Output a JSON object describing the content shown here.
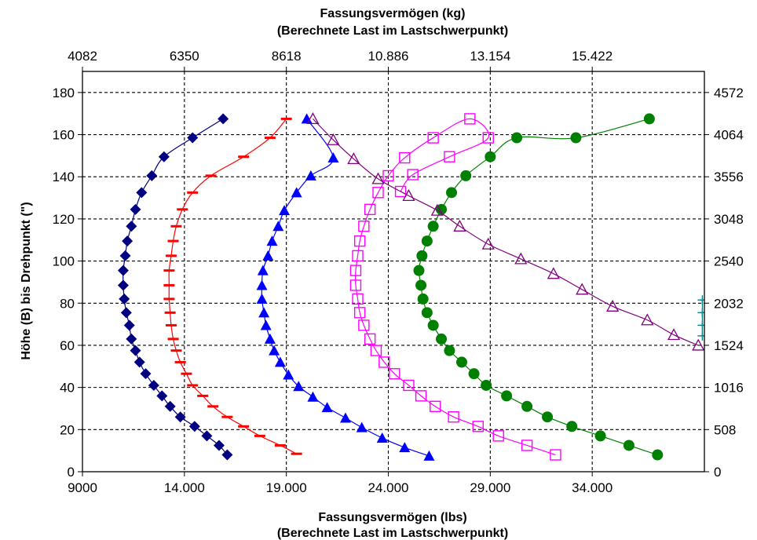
{
  "chart_data": {
    "type": "scatter",
    "title_top_line1": "Fassungsvermögen (kg)",
    "title_top_line2": "(Berechnete Last im Lastschwerpunkt)",
    "xlabel_line1": "Fassungsvermögen (lbs)",
    "xlabel_line2": "(Berechnete Last im Lastschwerpunkt)",
    "ylabel": "Höhe (B) bis Drehpunkt (\")",
    "x_range": [
      9000,
      39500
    ],
    "y_range": [
      0,
      190
    ],
    "x_ticks": [
      {
        "value": 9000,
        "label": "9000"
      },
      {
        "value": 14000,
        "label": "14.000"
      },
      {
        "value": 19000,
        "label": "19.000"
      },
      {
        "value": 24000,
        "label": "24.000"
      },
      {
        "value": 29000,
        "label": "29.000"
      },
      {
        "value": 34000,
        "label": "34.000"
      }
    ],
    "y_ticks": [
      {
        "value": 0,
        "label": "0"
      },
      {
        "value": 20,
        "label": "20"
      },
      {
        "value": 40,
        "label": "40"
      },
      {
        "value": 60,
        "label": "60"
      },
      {
        "value": 80,
        "label": "80"
      },
      {
        "value": 100,
        "label": "100"
      },
      {
        "value": 120,
        "label": "120"
      },
      {
        "value": 140,
        "label": "140"
      },
      {
        "value": 160,
        "label": "160"
      },
      {
        "value": 180,
        "label": "180"
      }
    ],
    "x2_ticks": [
      {
        "value": 9000,
        "label": "4082"
      },
      {
        "value": 14000,
        "label": "6350"
      },
      {
        "value": 19000,
        "label": "8618"
      },
      {
        "value": 24000,
        "label": "10.886"
      },
      {
        "value": 29000,
        "label": "13.154"
      },
      {
        "value": 34000,
        "label": "15.422"
      }
    ],
    "y2_ticks": [
      {
        "value": 0,
        "label": "0"
      },
      {
        "value": 20,
        "label": "508"
      },
      {
        "value": 40,
        "label": "1016"
      },
      {
        "value": 60,
        "label": "1524"
      },
      {
        "value": 80,
        "label": "2032"
      },
      {
        "value": 100,
        "label": "2540"
      },
      {
        "value": 120,
        "label": "3048"
      },
      {
        "value": 140,
        "label": "3556"
      },
      {
        "value": 160,
        "label": "4064"
      },
      {
        "value": 180,
        "label": "4572"
      }
    ],
    "grid": true,
    "series": [
      {
        "marker": "diamond",
        "color": "#000080",
        "points": [
          [
            16100,
            8
          ],
          [
            15700,
            12.5
          ],
          [
            15100,
            17
          ],
          [
            14500,
            21.5
          ],
          [
            13800,
            26
          ],
          [
            13300,
            31
          ],
          [
            12900,
            36
          ],
          [
            12500,
            41
          ],
          [
            12100,
            46.5
          ],
          [
            11800,
            52
          ],
          [
            11600,
            57.5
          ],
          [
            11400,
            63
          ],
          [
            11300,
            69.5
          ],
          [
            11150,
            75.5
          ],
          [
            11050,
            82
          ],
          [
            11000,
            88.5
          ],
          [
            11000,
            95.5
          ],
          [
            11100,
            102.5
          ],
          [
            11200,
            109.5
          ],
          [
            11400,
            116.5
          ],
          [
            11600,
            124.5
          ],
          [
            11900,
            132.5
          ],
          [
            12400,
            140.5
          ],
          [
            13000,
            149.5
          ],
          [
            14400,
            158.5
          ],
          [
            15900,
            167.5
          ]
        ]
      },
      {
        "marker": "dash",
        "color": "#ff0000",
        "points": [
          [
            19500,
            8.5
          ],
          [
            18700,
            12.5
          ],
          [
            17700,
            17
          ],
          [
            16900,
            21.5
          ],
          [
            16100,
            26
          ],
          [
            15400,
            31
          ],
          [
            14900,
            36
          ],
          [
            14400,
            41
          ],
          [
            14100,
            46.5
          ],
          [
            13800,
            52
          ],
          [
            13600,
            57.5
          ],
          [
            13450,
            63
          ],
          [
            13350,
            69.5
          ],
          [
            13300,
            75.5
          ],
          [
            13250,
            82
          ],
          [
            13250,
            88.5
          ],
          [
            13250,
            95.5
          ],
          [
            13350,
            102.5
          ],
          [
            13450,
            109.5
          ],
          [
            13600,
            116.5
          ],
          [
            13900,
            124.5
          ],
          [
            14400,
            132.5
          ],
          [
            15300,
            140.5
          ],
          [
            16900,
            149.5
          ],
          [
            18200,
            158.5
          ],
          [
            19000,
            167.5
          ]
        ]
      },
      {
        "marker": "triangle",
        "color": "#0000ff",
        "points": [
          [
            26000,
            7.5
          ],
          [
            24800,
            11.5
          ],
          [
            23700,
            16
          ],
          [
            22700,
            21
          ],
          [
            21900,
            25.5
          ],
          [
            21000,
            30.5
          ],
          [
            20300,
            35.5
          ],
          [
            19600,
            40.5
          ],
          [
            19100,
            46
          ],
          [
            18700,
            52
          ],
          [
            18400,
            57.5
          ],
          [
            18200,
            63
          ],
          [
            18000,
            69.5
          ],
          [
            17900,
            75.5
          ],
          [
            17800,
            82
          ],
          [
            17800,
            88.5
          ],
          [
            17850,
            95.5
          ],
          [
            18100,
            102.5
          ],
          [
            18300,
            109.5
          ],
          [
            18600,
            116.5
          ],
          [
            18900,
            124
          ],
          [
            19500,
            132.5
          ],
          [
            20200,
            140.5
          ],
          [
            21300,
            149
          ],
          [
            20000,
            167.5
          ]
        ]
      },
      {
        "marker": "square-open",
        "color": "#ff00ff",
        "points": [
          [
            32200,
            8
          ],
          [
            30800,
            12.5
          ],
          [
            29400,
            17
          ],
          [
            28400,
            21.5
          ],
          [
            27200,
            26
          ],
          [
            26300,
            31
          ],
          [
            25600,
            36
          ],
          [
            25000,
            41
          ],
          [
            24300,
            46.5
          ],
          [
            23800,
            52
          ],
          [
            23400,
            57.5
          ],
          [
            23100,
            63
          ],
          [
            22800,
            69.5
          ],
          [
            22600,
            75.5
          ],
          [
            22500,
            82
          ],
          [
            22400,
            88.5
          ],
          [
            22400,
            95.5
          ],
          [
            22500,
            102.5
          ],
          [
            22600,
            109.5
          ],
          [
            22800,
            116.5
          ],
          [
            23100,
            124.5
          ],
          [
            23500,
            132.5
          ],
          [
            24000,
            140.5
          ],
          [
            24800,
            149
          ],
          [
            26200,
            158.5
          ],
          [
            28000,
            167.5
          ],
          [
            28900,
            158.5
          ],
          [
            27000,
            149.5
          ],
          [
            25200,
            141
          ],
          [
            24600,
            133
          ]
        ]
      },
      {
        "marker": "circle",
        "color": "#008000",
        "points": [
          [
            37200,
            8
          ],
          [
            35800,
            12.5
          ],
          [
            34400,
            17
          ],
          [
            33000,
            21.5
          ],
          [
            31800,
            26
          ],
          [
            30800,
            31
          ],
          [
            29800,
            36
          ],
          [
            28800,
            41
          ],
          [
            28200,
            46.5
          ],
          [
            27600,
            52
          ],
          [
            27000,
            57.5
          ],
          [
            26600,
            63
          ],
          [
            26200,
            69.5
          ],
          [
            25900,
            75.5
          ],
          [
            25700,
            82
          ],
          [
            25600,
            88.5
          ],
          [
            25500,
            95.5
          ],
          [
            25650,
            102.5
          ],
          [
            25900,
            109.5
          ],
          [
            26200,
            116.5
          ],
          [
            26600,
            124.5
          ],
          [
            27100,
            132.5
          ],
          [
            27800,
            140.5
          ],
          [
            29000,
            149.5
          ],
          [
            30300,
            158.5
          ],
          [
            33200,
            158.5
          ],
          [
            36800,
            167.5
          ]
        ]
      },
      {
        "marker": "triangle-open",
        "color": "#800080",
        "points": [
          [
            20300,
            167.5
          ],
          [
            21300,
            157.5
          ],
          [
            22300,
            148.5
          ],
          [
            23500,
            139
          ],
          [
            25000,
            131
          ],
          [
            26400,
            124
          ],
          [
            27500,
            116.5
          ],
          [
            28900,
            108
          ],
          [
            30500,
            101
          ],
          [
            32100,
            94
          ],
          [
            33500,
            86.5
          ],
          [
            35000,
            78.5
          ],
          [
            36700,
            72
          ],
          [
            38000,
            65
          ],
          [
            39200,
            60
          ]
        ]
      },
      {
        "marker": "plus",
        "color": "#008080",
        "points": [
          [
            39400,
            64.5
          ],
          [
            39400,
            69.5
          ],
          [
            39400,
            75.5
          ],
          [
            39400,
            81.5
          ]
        ]
      }
    ]
  }
}
